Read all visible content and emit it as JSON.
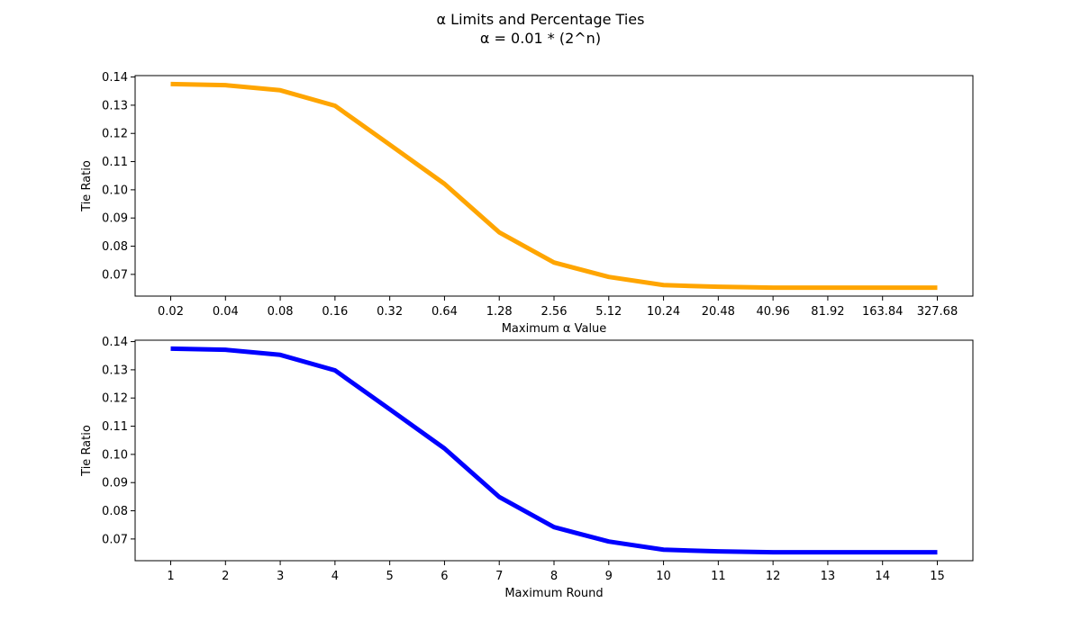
{
  "figure": {
    "title": "α Limits and Percentage Ties",
    "subtitle": "α = 0.01 * (2^n)"
  },
  "chart_data": [
    {
      "type": "line",
      "xlabel": "Maximum α Value",
      "ylabel": "Tie Ratio",
      "categories": [
        "0.02",
        "0.04",
        "0.08",
        "0.16",
        "0.32",
        "0.64",
        "1.28",
        "2.56",
        "5.12",
        "10.24",
        "20.48",
        "40.96",
        "81.92",
        "163.84",
        "327.68"
      ],
      "series": [
        {
          "color": "#FFA500",
          "values": [
            0.1375,
            0.1371,
            0.1353,
            0.1298,
            0.116,
            0.1021,
            0.0849,
            0.0742,
            0.0691,
            0.0662,
            0.0656,
            0.0653,
            0.0653,
            0.0653,
            0.0653
          ]
        }
      ],
      "ylim": [
        0.0623,
        0.1405
      ],
      "yticks": [
        "0.07",
        "0.08",
        "0.09",
        "0.10",
        "0.11",
        "0.12",
        "0.13",
        "0.14"
      ],
      "grid": false,
      "legend": "none"
    },
    {
      "type": "line",
      "xlabel": "Maximum Round",
      "ylabel": "Tie Ratio",
      "categories": [
        "1",
        "2",
        "3",
        "4",
        "5",
        "6",
        "7",
        "8",
        "9",
        "10",
        "11",
        "12",
        "13",
        "14",
        "15"
      ],
      "series": [
        {
          "color": "#0000FF",
          "values": [
            0.1375,
            0.1371,
            0.1353,
            0.1298,
            0.116,
            0.1021,
            0.0849,
            0.0742,
            0.0691,
            0.0662,
            0.0656,
            0.0653,
            0.0653,
            0.0653,
            0.0653
          ]
        }
      ],
      "ylim": [
        0.0623,
        0.1405
      ],
      "yticks": [
        "0.07",
        "0.08",
        "0.09",
        "0.10",
        "0.11",
        "0.12",
        "0.13",
        "0.14"
      ],
      "grid": false,
      "legend": "none"
    }
  ]
}
